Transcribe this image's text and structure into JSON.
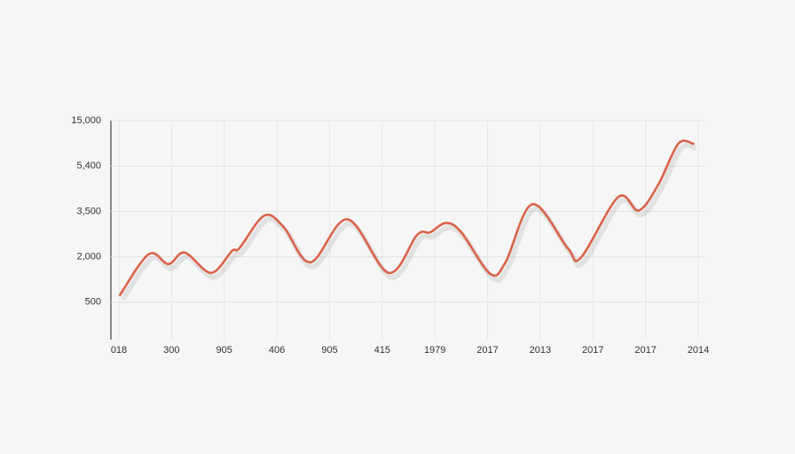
{
  "chart_data": {
    "type": "line",
    "x": [
      0.02,
      0.57,
      0.94,
      1.25,
      1.75,
      2.15,
      2.29,
      2.76,
      3.13,
      3.64,
      4.34,
      5.12,
      5.66,
      5.91,
      6.21,
      6.5,
      7.05,
      7.34,
      7.85,
      8.52,
      8.77,
      9.48,
      9.87,
      10.24,
      10.62,
      10.91
    ],
    "values": [
      740,
      2090,
      1760,
      2140,
      1470,
      2200,
      2290,
      3360,
      2980,
      1820,
      3240,
      1470,
      2720,
      2810,
      3120,
      2810,
      1440,
      1820,
      3800,
      2290,
      1970,
      4100,
      3540,
      4620,
      10100,
      10100
    ],
    "color": "#d9634a",
    "xlim": [
      0,
      11
    ],
    "xticks": [
      {
        "value": 0,
        "label": "018"
      },
      {
        "value": 1,
        "label": "300"
      },
      {
        "value": 2,
        "label": "905"
      },
      {
        "value": 3,
        "label": "406"
      },
      {
        "value": 4,
        "label": "905"
      },
      {
        "value": 5,
        "label": "415"
      },
      {
        "value": 6,
        "label": "1979"
      },
      {
        "value": 7,
        "label": "2017"
      },
      {
        "value": 8,
        "label": "2013"
      },
      {
        "value": 9,
        "label": "2017"
      },
      {
        "value": 10,
        "label": "2017"
      },
      {
        "value": 11,
        "label": "2014"
      }
    ],
    "ylim": [
      -735,
      15000
    ],
    "yticks": [
      500,
      {
        "value": 2000,
        "label": "2,000"
      },
      {
        "value": 3500,
        "label": "3,500"
      },
      {
        "value": 5400,
        "label": "5,400"
      },
      {
        "value": 15000,
        "label": "15,000"
      }
    ],
    "grid": true
  }
}
